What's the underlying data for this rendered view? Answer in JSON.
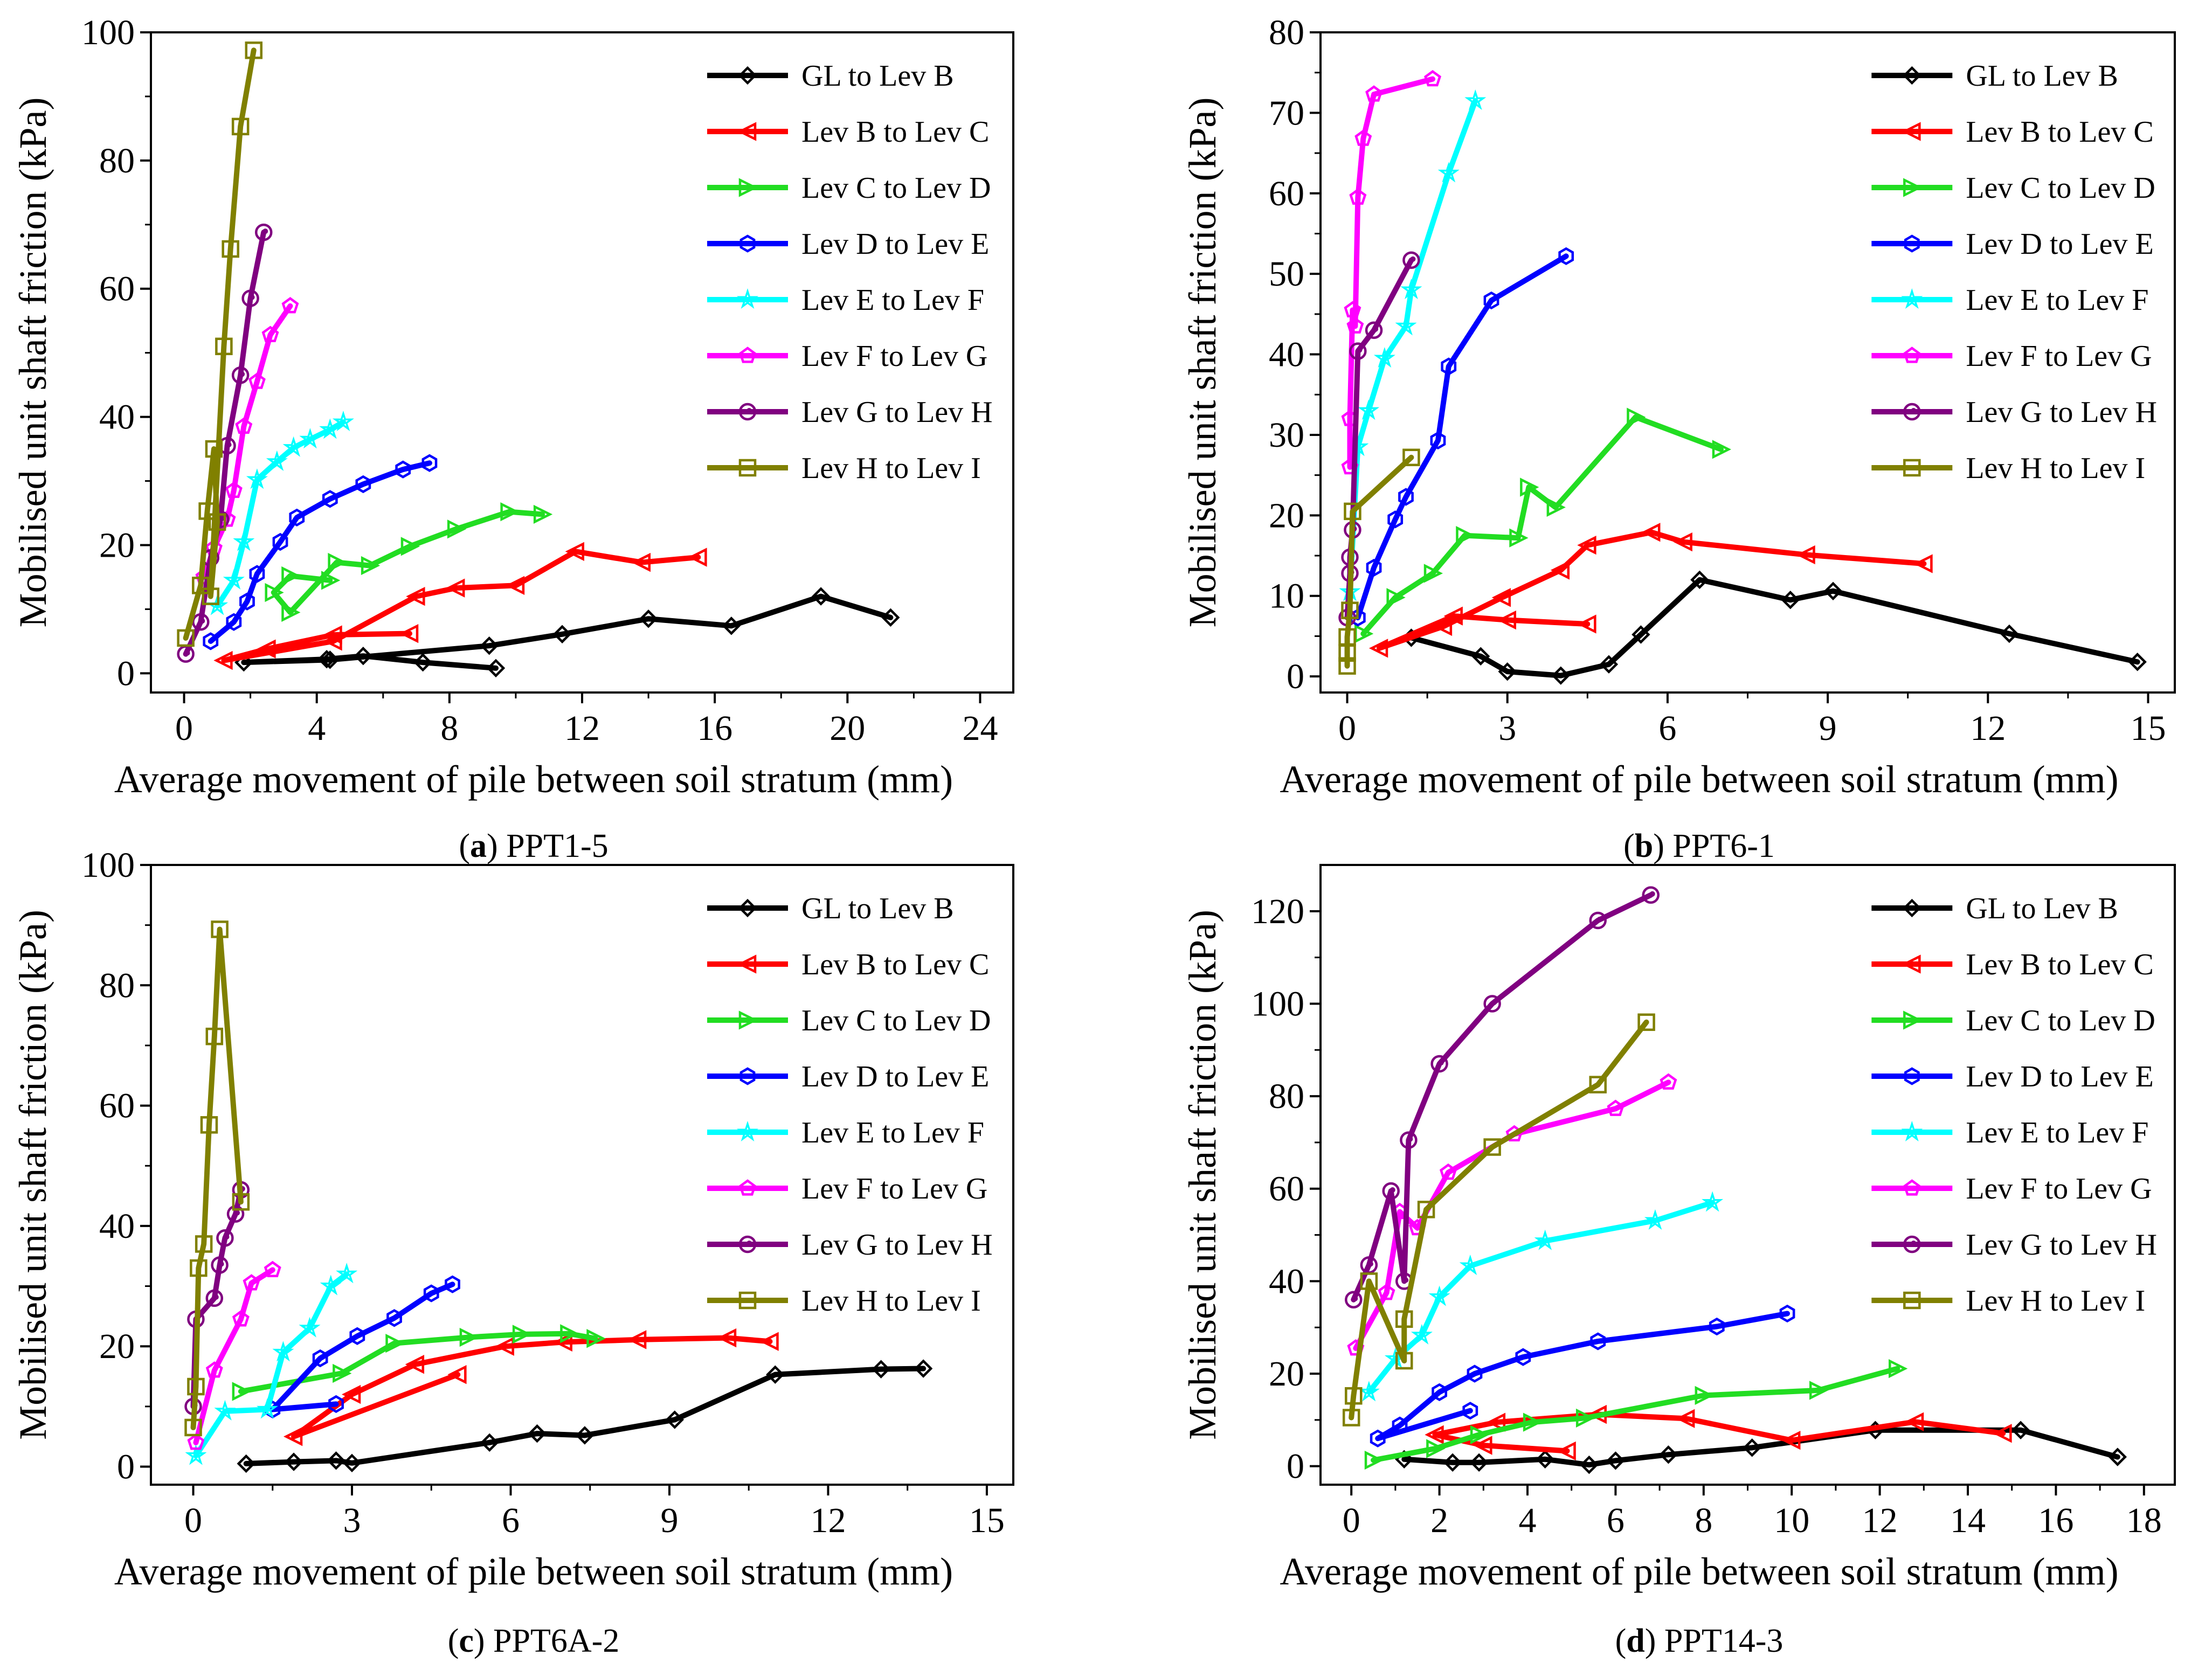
{
  "chart_data": [
    {
      "type": "line",
      "panel_letter": "a",
      "panel_name": "PPT1-5",
      "xlabel": "Average movement of pile between soil stratum (mm)",
      "ylabel": "Mobilised unit shaft friction (kPa)",
      "xlim": [
        -1,
        25
      ],
      "ylim": [
        -3,
        100
      ],
      "xticks": [
        0,
        4,
        8,
        12,
        16,
        20,
        24
      ],
      "yticks": [
        0,
        20,
        40,
        60,
        80,
        100
      ],
      "series": [
        {
          "name": "GL to Lev B",
          "color": "#000000",
          "marker": "diamond",
          "x": [
            9.4,
            7.2,
            5.4,
            4.3,
            1.8,
            4.4,
            9.2,
            11.4,
            14,
            16.5,
            19.2,
            21.3
          ],
          "y": [
            0.8,
            1.7,
            2.7,
            2.2,
            1.7,
            2.1,
            4.3,
            6.1,
            8.5,
            7.4,
            12,
            8.7
          ]
        },
        {
          "name": "Lev B to Lev C",
          "color": "#ff0000",
          "marker": "triangle-left",
          "x": [
            6.8,
            4.5,
            2.5,
            1.2,
            4.5,
            7.0,
            8.2,
            10,
            11.8,
            13.8,
            15.5
          ],
          "y": [
            6.2,
            6.0,
            3.8,
            2.0,
            5.0,
            12,
            13.3,
            13.7,
            19,
            17.3,
            18.1
          ]
        },
        {
          "name": "Lev C to Lev D",
          "color": "#22dd22",
          "marker": "triangle-right",
          "x": [
            4.4,
            3.2,
            2.7,
            3.2,
            4.6,
            5.6,
            6.8,
            8.2,
            9.8,
            10.8
          ],
          "y": [
            14.5,
            15.2,
            12.6,
            9.5,
            17.3,
            16.8,
            19.8,
            22.5,
            25.2,
            24.8
          ]
        },
        {
          "name": "Lev D to Lev E",
          "color": "#0000ff",
          "marker": "hexagon",
          "x": [
            0.8,
            1.5,
            1.9,
            2.2,
            2.9,
            3.4,
            4.4,
            5.4,
            6.6,
            7.4
          ],
          "y": [
            5.0,
            8.0,
            11.2,
            15.5,
            20.5,
            24.3,
            27.2,
            29.5,
            31.8,
            32.8
          ]
        },
        {
          "name": "Lev E to Lev F",
          "color": "#00ffff",
          "marker": "star",
          "x": [
            1.0,
            1.5,
            1.8,
            2.2,
            2.8,
            3.3,
            3.8,
            4.4,
            4.8
          ],
          "y": [
            10.5,
            14.5,
            20.5,
            30.2,
            33,
            35.2,
            36.5,
            38,
            39.2
          ]
        },
        {
          "name": "Lev F to Lev G",
          "color": "#ff00ff",
          "marker": "pentagon",
          "x": [
            0.6,
            0.9,
            1.3,
            1.5,
            1.8,
            2.2,
            2.6,
            3.2
          ],
          "y": [
            15,
            19.5,
            24,
            28.5,
            38.5,
            45.5,
            52.8,
            57.3
          ]
        },
        {
          "name": "Lev G to Lev H",
          "color": "#800080",
          "marker": "circle-dot",
          "x": [
            0.05,
            0.5,
            0.8,
            1.1,
            1.3,
            1.7,
            2.0,
            2.4
          ],
          "y": [
            3.0,
            8.0,
            18,
            24,
            35.5,
            46.5,
            58.5,
            68.8
          ]
        },
        {
          "name": "Lev H to Lev I",
          "color": "#808000",
          "marker": "square",
          "x": [
            0.05,
            0.5,
            0.7,
            0.9,
            1.0,
            0.8,
            1.2,
            1.4,
            1.7,
            2.1
          ],
          "y": [
            5.5,
            13.7,
            25.3,
            35,
            23.6,
            12,
            51,
            66.2,
            85.3,
            97.2
          ]
        }
      ]
    },
    {
      "type": "line",
      "panel_letter": "b",
      "panel_name": "PPT6-1",
      "xlabel": "Average movement of pile between soil stratum (mm)",
      "ylabel": "Mobilised unit shaft friction (kPa)",
      "xlim": [
        -0.5,
        15.5
      ],
      "ylim": [
        -2,
        80
      ],
      "xticks": [
        0,
        3,
        6,
        9,
        12,
        15
      ],
      "yticks": [
        0,
        10,
        20,
        30,
        40,
        50,
        60,
        70,
        80
      ],
      "series": [
        {
          "name": "GL to Lev B",
          "color": "#000000",
          "marker": "diamond",
          "x": [
            1.2,
            2.5,
            3.0,
            4.0,
            4.9,
            5.5,
            6.6,
            8.3,
            9.1,
            12.4,
            14.8
          ],
          "y": [
            4.8,
            2.5,
            0.6,
            0.1,
            1.5,
            5.2,
            12,
            9.5,
            10.6,
            5.3,
            1.8
          ]
        },
        {
          "name": "Lev B to Lev C",
          "color": "#ff0000",
          "marker": "triangle-left",
          "x": [
            4.5,
            3.0,
            2.0,
            0.6,
            1.8,
            2.9,
            4.0,
            4.5,
            5.7,
            6.3,
            8.6,
            10.8
          ],
          "y": [
            6.5,
            7.0,
            7.5,
            3.5,
            6.2,
            9.8,
            13.2,
            16.3,
            17.9,
            16.7,
            15.1,
            14.0
          ]
        },
        {
          "name": "Lev C to Lev D",
          "color": "#22dd22",
          "marker": "triangle-right",
          "x": [
            0.3,
            0.9,
            1.6,
            2.2,
            3.2,
            3.4,
            3.9,
            5.4,
            7.0
          ],
          "y": [
            5.3,
            9.8,
            12.8,
            17.5,
            17.2,
            23.5,
            21,
            32.2,
            28.2
          ]
        },
        {
          "name": "Lev D to Lev E",
          "color": "#0000ff",
          "marker": "hexagon",
          "x": [
            0.2,
            0.5,
            0.9,
            1.1,
            1.7,
            1.9,
            2.7,
            4.1
          ],
          "y": [
            7.3,
            13.5,
            19.5,
            22.3,
            29.3,
            38.5,
            46.7,
            52.2
          ]
        },
        {
          "name": "Lev E to Lev F",
          "color": "#00ffff",
          "marker": "star",
          "x": [
            0.05,
            0.2,
            0.4,
            0.7,
            1.1,
            1.2,
            1.9,
            2.4
          ],
          "y": [
            10.5,
            28.5,
            33,
            39.5,
            43.5,
            48,
            62.5,
            71.5
          ]
        },
        {
          "name": "Lev F to Lev G",
          "color": "#ff00ff",
          "marker": "pentagon",
          "x": [
            0.05,
            0.05,
            0.1,
            0.15,
            0.2,
            0.3,
            0.5,
            1.6
          ],
          "y": [
            26,
            32,
            45.5,
            43.5,
            59.5,
            66.8,
            72.3,
            74.2
          ]
        },
        {
          "name": "Lev G to Lev H",
          "color": "#800080",
          "marker": "circle-dot",
          "x": [
            0.0,
            0.05,
            0.05,
            0.1,
            0.2,
            0.5,
            1.2
          ],
          "y": [
            7.3,
            12.8,
            14.8,
            18.2,
            40.4,
            43,
            51.7
          ]
        },
        {
          "name": "Lev H to Lev I",
          "color": "#808000",
          "marker": "square",
          "x": [
            0.0,
            0.0,
            0.0,
            0.05,
            0.1,
            1.2
          ],
          "y": [
            1.3,
            2.9,
            4.9,
            8.2,
            20.5,
            27.2
          ]
        }
      ]
    },
    {
      "type": "line",
      "panel_letter": "c",
      "panel_name": "PPT6A-2",
      "xlabel": "Average movement of pile between soil stratum (mm)",
      "ylabel": "Mobilised unit shaft friction (kPa)",
      "xlim": [
        -0.8,
        15.5
      ],
      "ylim": [
        -3,
        100
      ],
      "xticks": [
        0,
        3,
        6,
        9,
        12,
        15
      ],
      "yticks": [
        0,
        20,
        40,
        60,
        80,
        100
      ],
      "series": [
        {
          "name": "GL to Lev B",
          "color": "#000000",
          "marker": "diamond",
          "x": [
            1.0,
            1.9,
            2.7,
            3.0,
            5.6,
            6.5,
            7.4,
            9.1,
            11.0,
            13.0,
            13.8
          ],
          "y": [
            0.5,
            0.8,
            1.0,
            0.6,
            4.0,
            5.5,
            5.2,
            7.8,
            15.3,
            16.2,
            16.3
          ]
        },
        {
          "name": "Lev B to Lev C",
          "color": "#ff0000",
          "marker": "triangle-left",
          "x": [
            5.0,
            1.9,
            3.0,
            4.2,
            5.9,
            7.0,
            8.4,
            10.1,
            10.9
          ],
          "y": [
            15.3,
            5.0,
            12,
            17,
            20,
            20.7,
            21.1,
            21.4,
            20.8
          ]
        },
        {
          "name": "Lev C to Lev D",
          "color": "#22dd22",
          "marker": "triangle-right",
          "x": [
            0.9,
            2.8,
            3.8,
            5.2,
            6.2,
            7.1,
            7.6
          ],
          "y": [
            12.5,
            15.5,
            20.5,
            21.5,
            22,
            22.1,
            21.3
          ]
        },
        {
          "name": "Lev D to Lev E",
          "color": "#0000ff",
          "marker": "hexagon",
          "x": [
            2.7,
            1.5,
            2.4,
            3.1,
            3.8,
            4.5,
            4.9
          ],
          "y": [
            10.4,
            9.5,
            18,
            21.7,
            24.7,
            28.8,
            30.3
          ]
        },
        {
          "name": "Lev E to Lev F",
          "color": "#00ffff",
          "marker": "star",
          "x": [
            0.05,
            0.6,
            1.4,
            1.7,
            2.2,
            2.6,
            2.9
          ],
          "y": [
            1.8,
            9.2,
            9.5,
            19,
            23,
            30,
            32
          ]
        },
        {
          "name": "Lev F to Lev G",
          "color": "#ff00ff",
          "marker": "pentagon",
          "x": [
            0.05,
            0.4,
            0.9,
            1.1,
            1.5
          ],
          "y": [
            4.0,
            16,
            24.5,
            30.5,
            32.7
          ]
        },
        {
          "name": "Lev G to Lev H",
          "color": "#800080",
          "marker": "circle-dot",
          "x": [
            0.0,
            0.05,
            0.4,
            0.5,
            0.6,
            0.8,
            0.9
          ],
          "y": [
            10.0,
            24.5,
            28,
            33.5,
            38,
            42,
            46
          ]
        },
        {
          "name": "Lev H to Lev I",
          "color": "#808000",
          "marker": "square",
          "x": [
            0.0,
            0.05,
            0.1,
            0.2,
            0.3,
            0.4,
            0.5,
            0.9
          ],
          "y": [
            6.5,
            13.3,
            33,
            37,
            56.8,
            71.5,
            89.3,
            44
          ]
        }
      ]
    },
    {
      "type": "line",
      "panel_letter": "d",
      "panel_name": "PPT14-3",
      "xlabel": "Average movement of pile between soil stratum (mm)",
      "ylabel": "Mobilised unit shaft friction (kPa)",
      "xlim": [
        -0.7,
        18.7
      ],
      "ylim": [
        -4,
        130
      ],
      "xticks": [
        0,
        2,
        4,
        6,
        8,
        10,
        12,
        14,
        16,
        18
      ],
      "yticks": [
        0,
        20,
        40,
        60,
        80,
        100,
        120
      ],
      "series": [
        {
          "name": "GL to Lev B",
          "color": "#000000",
          "marker": "diamond",
          "x": [
            1.2,
            2.3,
            2.9,
            4.4,
            5.4,
            6.0,
            7.2,
            9.1,
            11.9,
            15.2,
            17.4
          ],
          "y": [
            1.5,
            0.8,
            0.8,
            1.5,
            0.3,
            1.2,
            2.5,
            4.0,
            7.8,
            7.8,
            2.0
          ]
        },
        {
          "name": "Lev B to Lev C",
          "color": "#ff0000",
          "marker": "triangle-left",
          "x": [
            4.9,
            3.0,
            1.9,
            3.3,
            5.6,
            7.6,
            10.0,
            12.8,
            14.8
          ],
          "y": [
            3.3,
            4.5,
            6.8,
            9.5,
            11.2,
            10.3,
            5.6,
            9.6,
            7.1
          ]
        },
        {
          "name": "Lev C to Lev D",
          "color": "#22dd22",
          "marker": "triangle-right",
          "x": [
            0.5,
            1.9,
            2.9,
            4.1,
            5.3,
            8.0,
            10.6,
            12.4
          ],
          "y": [
            1.3,
            3.8,
            6.8,
            9.5,
            10.4,
            15.3,
            16.4,
            21.1
          ]
        },
        {
          "name": "Lev D to Lev E",
          "color": "#0000ff",
          "marker": "hexagon",
          "x": [
            2.7,
            0.6,
            1.1,
            2.0,
            2.8,
            3.9,
            5.6,
            8.3,
            9.9
          ],
          "y": [
            12,
            6.0,
            8.8,
            16,
            20,
            23.6,
            27,
            30.2,
            33
          ]
        },
        {
          "name": "Lev E to Lev F",
          "color": "#00ffff",
          "marker": "star",
          "x": [
            0.4,
            1.0,
            1.6,
            2.0,
            2.7,
            4.4,
            6.9,
            8.2
          ],
          "y": [
            16,
            23.2,
            28.3,
            36.6,
            43.3,
            48.7,
            53.1,
            57
          ]
        },
        {
          "name": "Lev F to Lev G",
          "color": "#ff00ff",
          "marker": "pentagon",
          "x": [
            0.1,
            0.8,
            1.1,
            1.5,
            2.2,
            3.7,
            6.0,
            7.2
          ],
          "y": [
            25.5,
            37.5,
            55,
            51.5,
            63.5,
            71.8,
            77.3,
            83
          ]
        },
        {
          "name": "Lev G to Lev H",
          "color": "#800080",
          "marker": "circle-dot",
          "x": [
            0.05,
            0.4,
            0.9,
            1.2,
            1.3,
            2.0,
            3.2,
            5.6,
            6.8
          ],
          "y": [
            36,
            43.5,
            59.5,
            40,
            70.5,
            87,
            100,
            118,
            123.5
          ]
        },
        {
          "name": "Lev H to Lev I",
          "color": "#808000",
          "marker": "square",
          "x": [
            0.0,
            0.05,
            0.4,
            1.2,
            1.2,
            1.7,
            3.2,
            5.6,
            6.7
          ],
          "y": [
            10.5,
            15.2,
            40,
            22.8,
            31.8,
            55.5,
            69,
            82.5,
            96
          ]
        }
      ]
    }
  ]
}
